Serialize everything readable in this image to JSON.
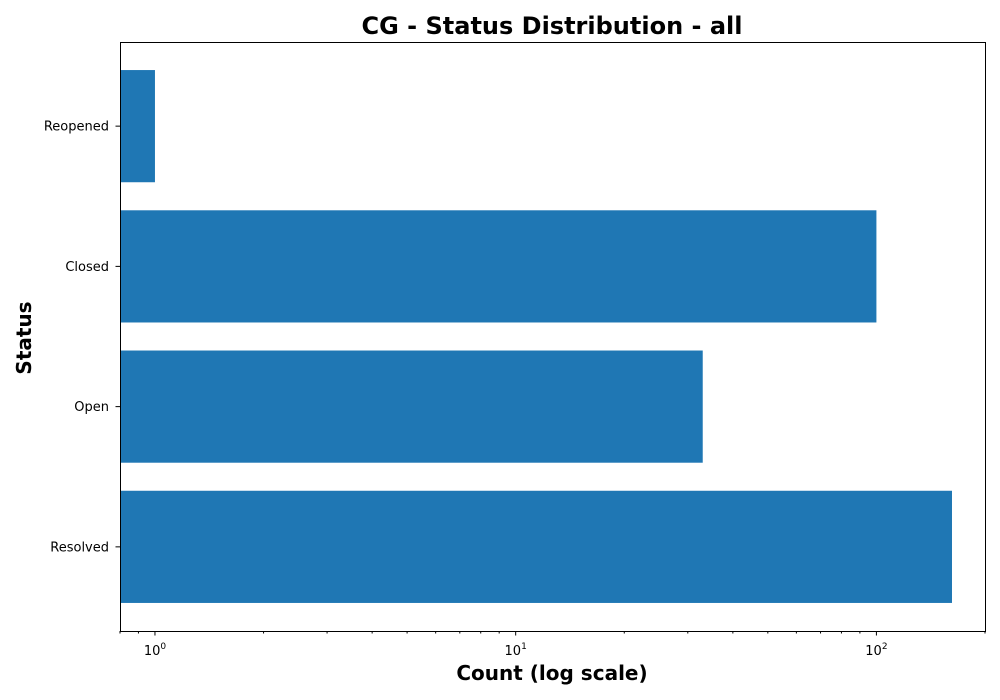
{
  "chart_data": {
    "type": "bar",
    "orientation": "horizontal",
    "title": "CG - Status Distribution - all",
    "xlabel": "Count (log scale)",
    "ylabel": "Status",
    "x_scale": "log",
    "xlim": [
      0.8,
      200
    ],
    "x_ticks": [
      {
        "value": 1,
        "base": "10",
        "exp": "0"
      },
      {
        "value": 10,
        "base": "10",
        "exp": "1"
      },
      {
        "value": 100,
        "base": "10",
        "exp": "2"
      }
    ],
    "categories": [
      "Reopened",
      "Closed",
      "Open",
      "Resolved"
    ],
    "values": [
      1,
      100,
      33,
      162
    ],
    "bar_color": "#1f77b4",
    "grid": false,
    "legend": "none"
  }
}
